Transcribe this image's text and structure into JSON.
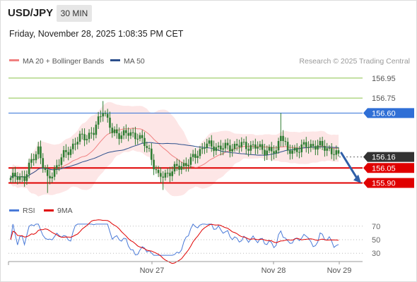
{
  "header": {
    "symbol": "USD/JPY",
    "timeframe": "30 MIN",
    "timestamp": "Friday, November 28, 2025 1:08:35 PM CET"
  },
  "legend": {
    "ma20": "MA 20 + Bollinger Bands",
    "ma50": "MA 50",
    "credit": "Research © 2025 Trading Central"
  },
  "indicator_legend": {
    "rsi": "RSI",
    "ma9": "9MA"
  },
  "colors": {
    "ma20": "#f08080",
    "ma50": "#2c4f8c",
    "bands": "#fde2e2",
    "candle": "#2e7d32",
    "support": "#e00000",
    "resistance": "#2f6fd6",
    "target_line": "#8bc34a",
    "current": "#333333",
    "arrow": "#2f5fa8",
    "rsi": "#4a7ad8"
  },
  "chart_data": [
    {
      "type": "line",
      "title": "USD/JPY",
      "ylim": [
        155.72,
        157.04
      ],
      "x_ticks": [
        "Nov 27",
        "Nov 28",
        "Nov 29"
      ],
      "levels": [
        {
          "value": 156.95,
          "label": "156.95",
          "kind": "target"
        },
        {
          "value": 156.75,
          "label": "156.75",
          "kind": "target"
        },
        {
          "value": 156.6,
          "label": "156.60",
          "kind": "resistance"
        },
        {
          "value": 156.16,
          "label": "156.16",
          "kind": "current"
        },
        {
          "value": 156.05,
          "label": "156.05",
          "kind": "support"
        },
        {
          "value": 155.9,
          "label": "155.90",
          "kind": "support"
        }
      ],
      "series": [
        {
          "name": "MA 20 + Bollinger Bands"
        },
        {
          "name": "MA 50"
        }
      ],
      "arrow": {
        "direction": "down",
        "from": 156.2,
        "to": 155.92
      }
    },
    {
      "type": "line",
      "title": "RSI",
      "ylim": [
        25,
        75
      ],
      "y_ticks": [
        "70",
        "50",
        "30"
      ],
      "series": [
        {
          "name": "RSI"
        },
        {
          "name": "9MA"
        }
      ]
    }
  ]
}
